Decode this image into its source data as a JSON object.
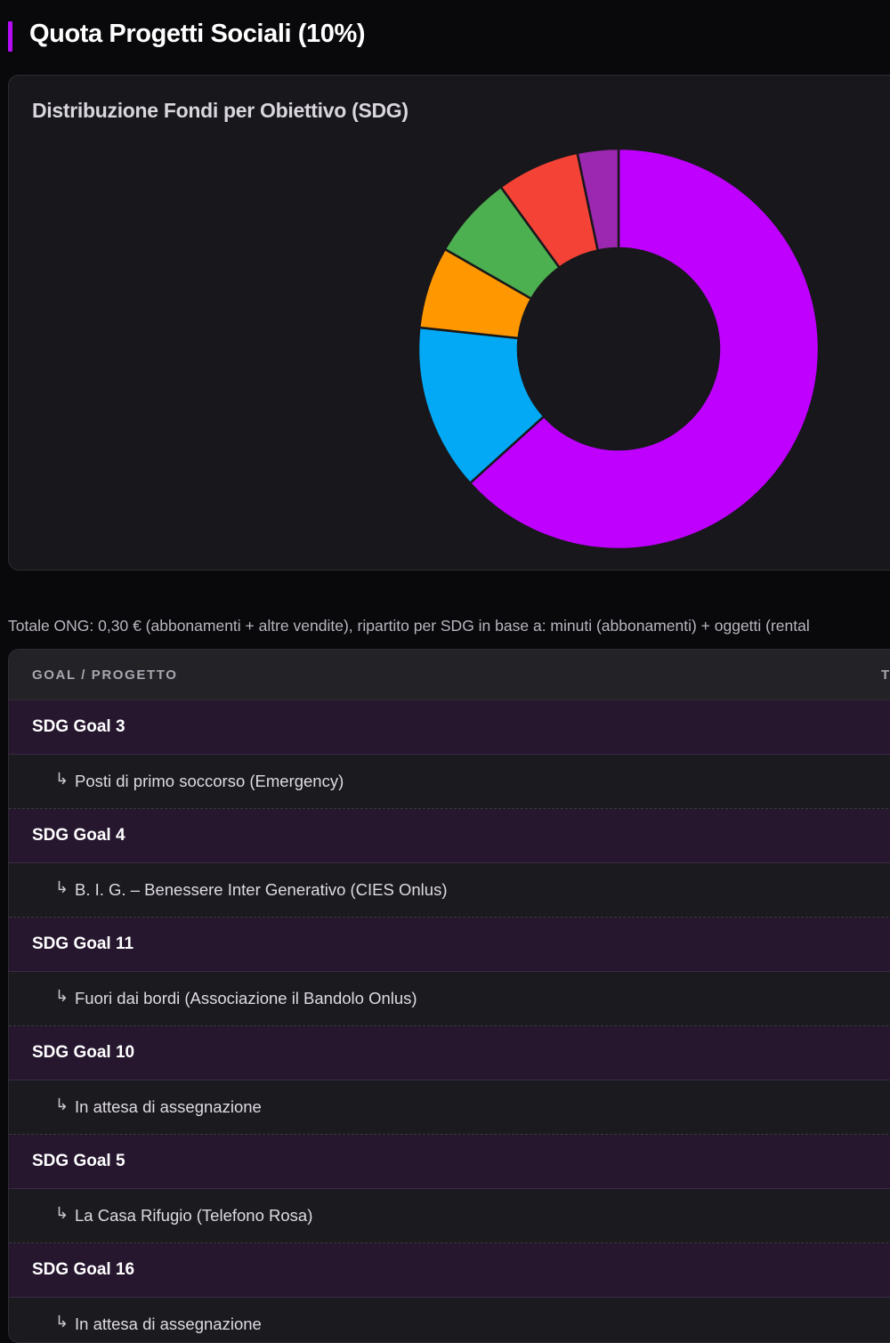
{
  "section": {
    "title": "Quota Progetti Sociali (10%)",
    "accent_color": "#b40cf5"
  },
  "chart_card": {
    "title": "Distribuzione Fondi per Obiettivo (SDG)"
  },
  "chart_data": {
    "type": "pie",
    "title": "Distribuzione Fondi per Obiettivo (SDG)",
    "series": [
      {
        "value": 0.633,
        "color": "#bf00ff"
      },
      {
        "value": 0.134,
        "color": "#03a9f4"
      },
      {
        "value": 0.066,
        "color": "#ff9800"
      },
      {
        "value": 0.067,
        "color": "#4caf50"
      },
      {
        "value": 0.067,
        "color": "#f44336"
      },
      {
        "value": 0.033,
        "color": "#9c27b0"
      }
    ]
  },
  "note": "Totale ONG: 0,30 € (abbonamenti + altre vendite), ripartito per SDG in base a: minuti (abbonamenti) + oggetti (rental",
  "table": {
    "header_goal": "GOAL / PROGETTO",
    "header_right": "T",
    "arrow_icon": "↳",
    "rows": [
      {
        "goal": "SDG Goal 3",
        "project": "Posti di primo soccorso (Emergency)"
      },
      {
        "goal": "SDG Goal 4",
        "project": "B. I. G. – Benessere Inter Generativo (CIES Onlus)"
      },
      {
        "goal": "SDG Goal 11",
        "project": "Fuori dai bordi (Associazione il Bandolo Onlus)"
      },
      {
        "goal": "SDG Goal 10",
        "project": "In attesa di assegnazione"
      },
      {
        "goal": "SDG Goal 5",
        "project": "La Casa Rifugio (Telefono Rosa)"
      },
      {
        "goal": "SDG Goal 16",
        "project": "In attesa di assegnazione"
      }
    ]
  }
}
